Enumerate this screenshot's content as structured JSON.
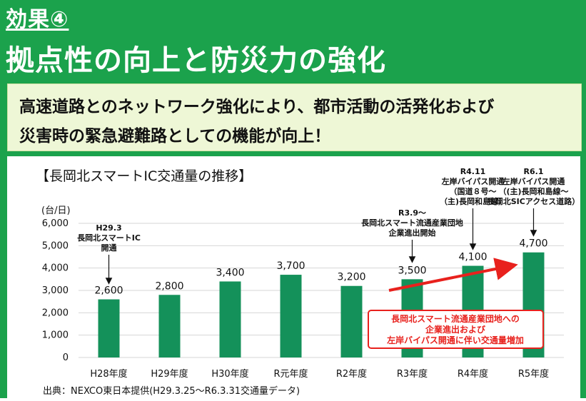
{
  "header": {
    "effect_label": "効果④",
    "title": "拠点性の向上と防災力の強化"
  },
  "message": {
    "line1": "高速道路とのネットワーク強化により、都市活動の活発化および",
    "line2": "災害時の緊急避難路としての機能が向上！"
  },
  "colors": {
    "background": "#1ba24c",
    "bar": "#14915a",
    "message_bg": "#eef7d6",
    "arrow": "#e8211d"
  },
  "chart_data": {
    "type": "bar",
    "title": "【長岡北スマートIC交通量の推移】",
    "unit": "(台/日)",
    "categories": [
      "H28年度",
      "H29年度",
      "H30年度",
      "R元年度",
      "R2年度",
      "R3年度",
      "R4年度",
      "R5年度"
    ],
    "values": [
      2600,
      2800,
      3400,
      3700,
      3200,
      3500,
      4100,
      4700
    ],
    "value_labels": [
      "2,600",
      "2,800",
      "3,400",
      "3,700",
      "3,200",
      "3,500",
      "4,100",
      "4,700"
    ],
    "ylim": [
      0,
      6000
    ],
    "yticks": [
      0,
      1000,
      2000,
      3000,
      4000,
      5000,
      6000
    ],
    "ytick_labels": [
      "0",
      "1,000",
      "2,000",
      "3,000",
      "4,000",
      "5,000",
      "6,000"
    ],
    "grid": true,
    "annotations": [
      {
        "category": "H28年度",
        "lines": [
          "H29.3",
          "長岡北スマートIC",
          "開通"
        ]
      },
      {
        "category": "R3年度",
        "lines": [
          "R3.9～",
          "長岡北スマート流通産業団地",
          "企業進出開始"
        ]
      },
      {
        "category": "R4年度",
        "lines": [
          "R4.11",
          "左岸バイパス開通",
          "（国道８号～",
          "（主)長岡和島線）"
        ]
      },
      {
        "category": "R5年度",
        "lines": [
          "R6.1",
          "左岸バイパス開通",
          "（(主)長岡和島線～",
          "長岡北SICアクセス道路）"
        ]
      }
    ],
    "callout": [
      "長岡北スマート流通産業団地への",
      "企業進出および",
      "左岸バイパス開通に伴い交通量増加"
    ],
    "source": "出典：NEXCO東日本提供(H29.3.25～R6.3.31交通量データ)"
  }
}
